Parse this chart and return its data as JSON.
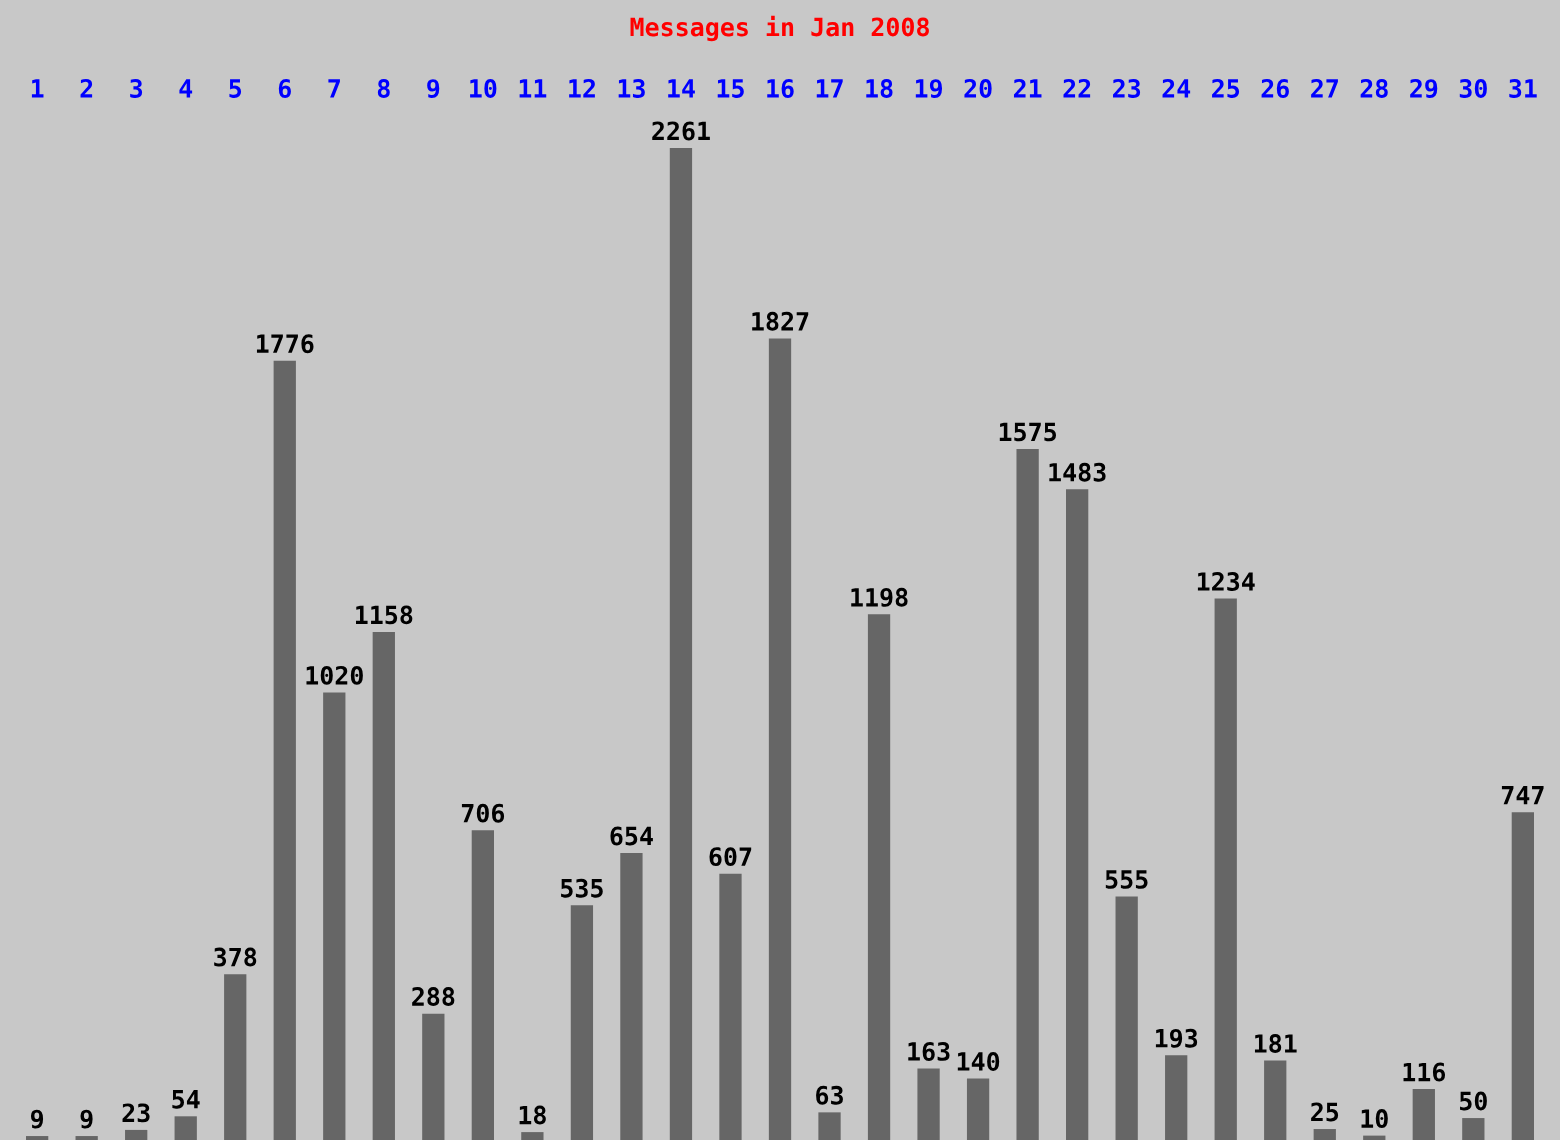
{
  "chart_data": {
    "type": "bar",
    "title": "Messages in Jan 2008",
    "categories": [
      "1",
      "2",
      "3",
      "4",
      "5",
      "6",
      "7",
      "8",
      "9",
      "10",
      "11",
      "12",
      "13",
      "14",
      "15",
      "16",
      "17",
      "18",
      "19",
      "20",
      "21",
      "22",
      "23",
      "24",
      "25",
      "26",
      "27",
      "28",
      "29",
      "30",
      "31"
    ],
    "values": [
      9,
      9,
      23,
      54,
      378,
      1776,
      1020,
      1158,
      288,
      706,
      18,
      535,
      654,
      2261,
      607,
      1827,
      63,
      1198,
      163,
      140,
      1575,
      1483,
      555,
      193,
      1234,
      181,
      25,
      10,
      116,
      50,
      747
    ],
    "color": "#666666",
    "data_labels": true
  }
}
